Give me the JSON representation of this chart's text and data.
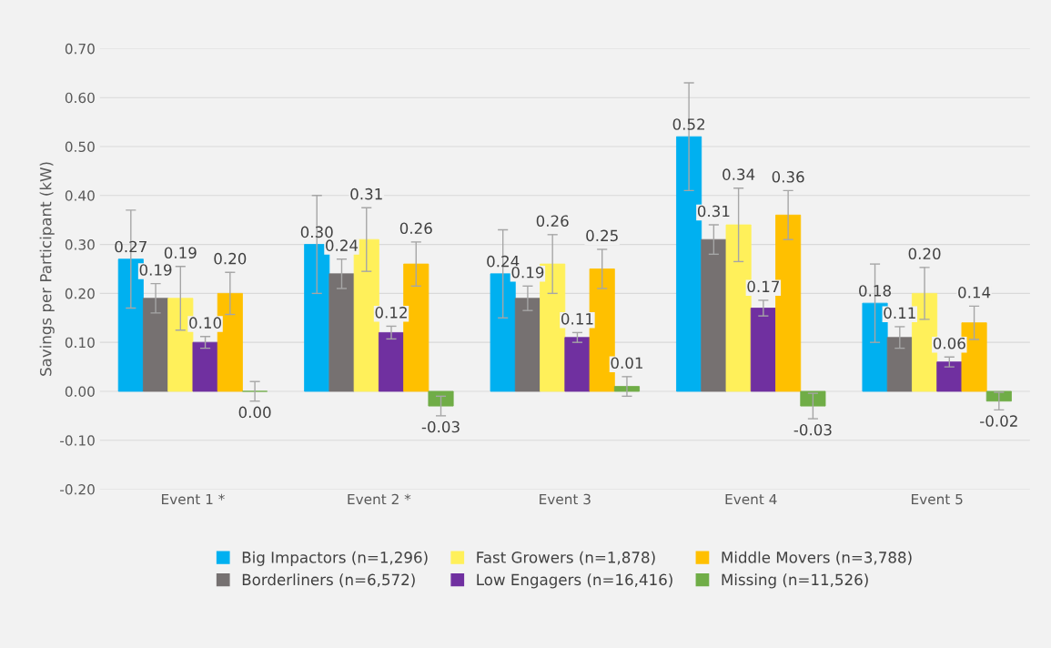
{
  "chart_data": {
    "type": "bar",
    "ylabel": "Savings per Participant (kW)",
    "categories": [
      "Event 1 *",
      "Event 2 *",
      "Event 3",
      "Event 4",
      "Event 5"
    ],
    "series": [
      {
        "name": "Big Impactors (n=1,296)",
        "color": "#00b0f0",
        "values": [
          0.27,
          0.3,
          0.24,
          0.52,
          0.18
        ],
        "value_labels": [
          "0.27",
          "0.30",
          "0.24",
          "0.52",
          "0.18"
        ],
        "errors": [
          0.1,
          0.1,
          0.09,
          0.11,
          0.08
        ]
      },
      {
        "name": "Borderliners (n=6,572)",
        "color": "#767171",
        "values": [
          0.19,
          0.24,
          0.19,
          0.31,
          0.11
        ],
        "value_labels": [
          "0.19",
          "0.24",
          "0.19",
          "0.31",
          "0.11"
        ],
        "errors": [
          0.03,
          0.03,
          0.025,
          0.03,
          0.022
        ]
      },
      {
        "name": "Fast Growers (n=1,878)",
        "color": "#fff05a",
        "values": [
          0.19,
          0.31,
          0.26,
          0.34,
          0.2
        ],
        "value_labels": [
          "0.19",
          "0.31",
          "0.26",
          "0.34",
          "0.20"
        ],
        "errors": [
          0.065,
          0.065,
          0.06,
          0.075,
          0.053
        ]
      },
      {
        "name": "Low Engagers (n=16,416)",
        "color": "#7030a0",
        "values": [
          0.1,
          0.12,
          0.11,
          0.17,
          0.06
        ],
        "value_labels": [
          "0.10",
          "0.12",
          "0.11",
          "0.17",
          "0.06"
        ],
        "errors": [
          0.012,
          0.013,
          0.01,
          0.016,
          0.01
        ]
      },
      {
        "name": "Middle Movers (n=3,788)",
        "color": "#ffc000",
        "values": [
          0.2,
          0.26,
          0.25,
          0.36,
          0.14
        ],
        "value_labels": [
          "0.20",
          "0.26",
          "0.25",
          "0.36",
          "0.14"
        ],
        "errors": [
          0.043,
          0.045,
          0.04,
          0.05,
          0.034
        ]
      },
      {
        "name": "Missing (n=11,526)",
        "color": "#70ad47",
        "values": [
          0.0,
          -0.03,
          0.01,
          -0.03,
          -0.02
        ],
        "value_labels": [
          "0.00",
          "-0.03",
          "0.01",
          "-0.03",
          "-0.02"
        ],
        "errors": [
          0.02,
          0.02,
          0.02,
          0.026,
          0.018
        ]
      }
    ],
    "ylim": [
      -0.2,
      0.7
    ],
    "yticks": [
      {
        "value": -0.2,
        "label": "-0.20"
      },
      {
        "value": -0.1,
        "label": "-0.10"
      },
      {
        "value": 0,
        "label": "0.00"
      },
      {
        "value": 0.1,
        "label": "0.10"
      },
      {
        "value": 0.2,
        "label": "0.20"
      },
      {
        "value": 0.3,
        "label": "0.30"
      },
      {
        "value": 0.4,
        "label": "0.40"
      },
      {
        "value": 0.5,
        "label": "0.50"
      },
      {
        "value": 0.6,
        "label": "0.60"
      },
      {
        "value": 0.7,
        "label": "0.70"
      }
    ],
    "grid": "y",
    "legend": "bottom"
  }
}
